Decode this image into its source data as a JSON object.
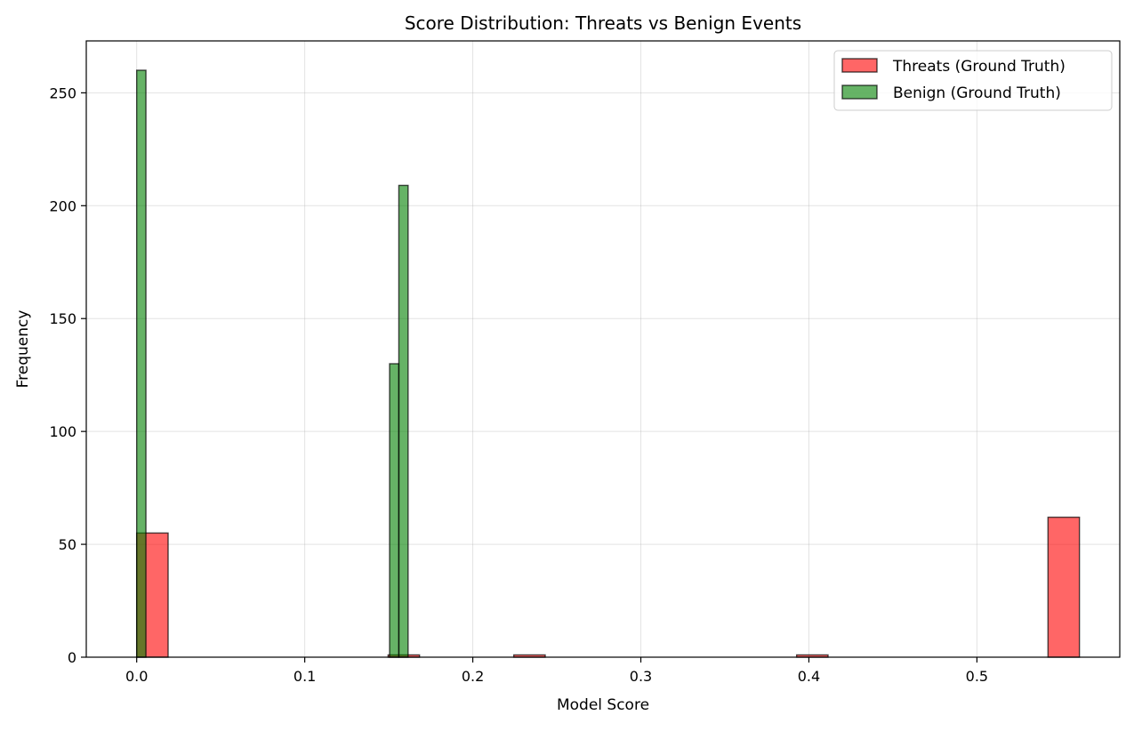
{
  "chart_data": {
    "type": "bar",
    "title": "Score Distribution: Threats vs Benign Events",
    "xlabel": "Model Score",
    "ylabel": "Frequency",
    "xlim": [
      -0.03,
      0.585
    ],
    "ylim": [
      0,
      273
    ],
    "xticks": [
      0.0,
      0.1,
      0.2,
      0.3,
      0.4,
      0.5
    ],
    "xtick_labels": [
      "0.0",
      "0.1",
      "0.2",
      "0.3",
      "0.4",
      "0.5"
    ],
    "yticks": [
      0,
      50,
      100,
      150,
      200,
      250
    ],
    "ytick_labels": [
      "0",
      "50",
      "100",
      "150",
      "200",
      "250"
    ],
    "grid": true,
    "legend_position": "top-right",
    "series": [
      {
        "name": "Threats (Ground Truth)",
        "color": "#ff0000",
        "opacity": 0.6,
        "bins": [
          {
            "x0": 0.0,
            "x1": 0.0187,
            "value": 55
          },
          {
            "x0": 0.1496,
            "x1": 0.1683,
            "value": 1
          },
          {
            "x0": 0.2244,
            "x1": 0.2431,
            "value": 1
          },
          {
            "x0": 0.3927,
            "x1": 0.4114,
            "value": 1
          },
          {
            "x0": 0.5423,
            "x1": 0.561,
            "value": 62
          }
        ]
      },
      {
        "name": "Benign (Ground Truth)",
        "color": "#008000",
        "opacity": 0.6,
        "bins": [
          {
            "x0": 0.0,
            "x1": 0.0055,
            "value": 260
          },
          {
            "x0": 0.1505,
            "x1": 0.156,
            "value": 130
          },
          {
            "x0": 0.156,
            "x1": 0.1615,
            "value": 209
          }
        ]
      }
    ]
  }
}
